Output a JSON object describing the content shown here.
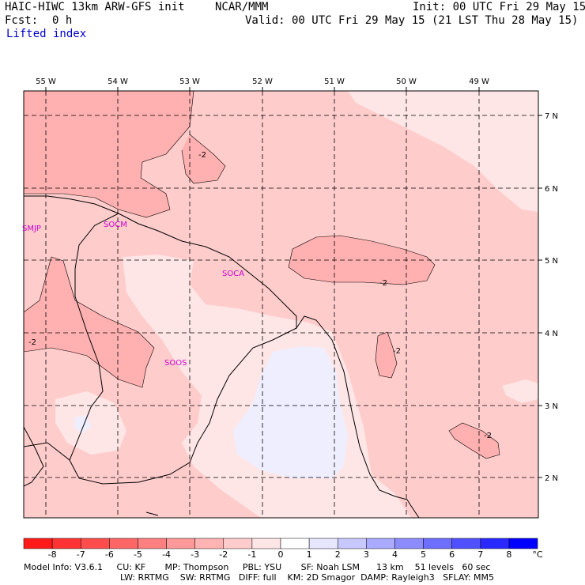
{
  "header": {
    "model": "HAIC-HIWC 13km ARW-GFS init",
    "org": "NCAR/MMM",
    "init": "Init: 00 UTC Fri 29 May 15",
    "fcst_label": "Fcst:",
    "fcst_value": "0 h",
    "valid": "Valid: 00 UTC Fri 29 May 15 (21 LST Thu 28 May 15)",
    "field": "Lifted index"
  },
  "map": {
    "lon_labels": [
      "55 W",
      "54 W",
      "53 W",
      "52 W",
      "51 W",
      "50 W",
      "49 W"
    ],
    "lat_labels": [
      "7 N",
      "6 N",
      "5 N",
      "4 N",
      "3 N",
      "2 N"
    ],
    "stations": [
      "SMJP",
      "SOCM",
      "SOCA",
      "SOOS"
    ],
    "contour_labels": [
      "-2",
      "-2",
      "-2",
      "-2",
      "-2"
    ]
  },
  "colorbar": {
    "labels": [
      "-8",
      "-7",
      "-6",
      "-5",
      "-4",
      "-3",
      "-2",
      "-1",
      "0",
      "1",
      "2",
      "3",
      "4",
      "5",
      "6",
      "7",
      "8"
    ],
    "unit": "°C",
    "colors": [
      "#ff1a1a",
      "#ff3333",
      "#ff4d4d",
      "#ff6666",
      "#ff8080",
      "#ff9999",
      "#ffb3b3",
      "#ffcccc",
      "#ffe6e6",
      "#ffffff",
      "#e6e6ff",
      "#c8c8ff",
      "#aaaaff",
      "#8c8cff",
      "#6e6eff",
      "#5050ff",
      "#2828ff",
      "#0000ff"
    ]
  },
  "footer": {
    "line1": "Model Info: V3.6.1     CU: KF       MP: Thompson     PBL: YSU       SF: Noah LSM      13 km    51 levels   60 sec",
    "line2": "LW: RRTMG    SW: RRTMG   DIFF: full    KM: 2D Smagor  DAMP: Rayleigh3   SFLAY: MM5"
  }
}
